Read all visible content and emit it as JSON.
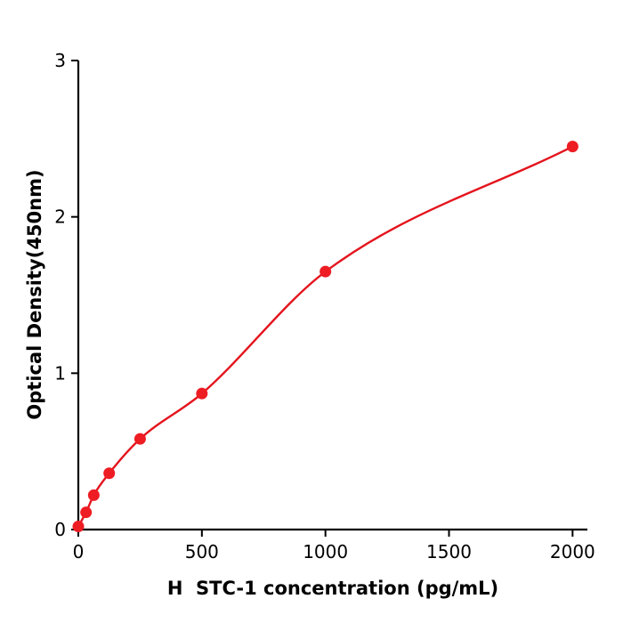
{
  "chart_data": {
    "type": "scatter",
    "title": "",
    "xlabel": "H  STC-1 concentration (pg/mL)",
    "ylabel": "Optical Density(450nm)",
    "x": [
      0,
      31.25,
      62.5,
      125,
      250,
      500,
      1000,
      2000
    ],
    "y": [
      0.02,
      0.11,
      0.22,
      0.36,
      0.58,
      0.87,
      1.65,
      2.45
    ],
    "fit": "smooth saturating curve through points (4PL-style standard curve)",
    "xlim": [
      0,
      2060
    ],
    "ylim": [
      0,
      3
    ],
    "xticks": [
      0,
      500,
      1000,
      1500,
      2000
    ],
    "xtick_labels": [
      "0",
      "500",
      "1000",
      "1500",
      "2000"
    ],
    "yticks": [
      0,
      1,
      2,
      3
    ],
    "ytick_labels": [
      "0",
      "1",
      "2",
      "3"
    ],
    "grid": false,
    "legend": null,
    "marker_color": "#ee1c23",
    "line_color": "#e4141d",
    "axis_color": "#000000",
    "text_color": "#000000"
  }
}
